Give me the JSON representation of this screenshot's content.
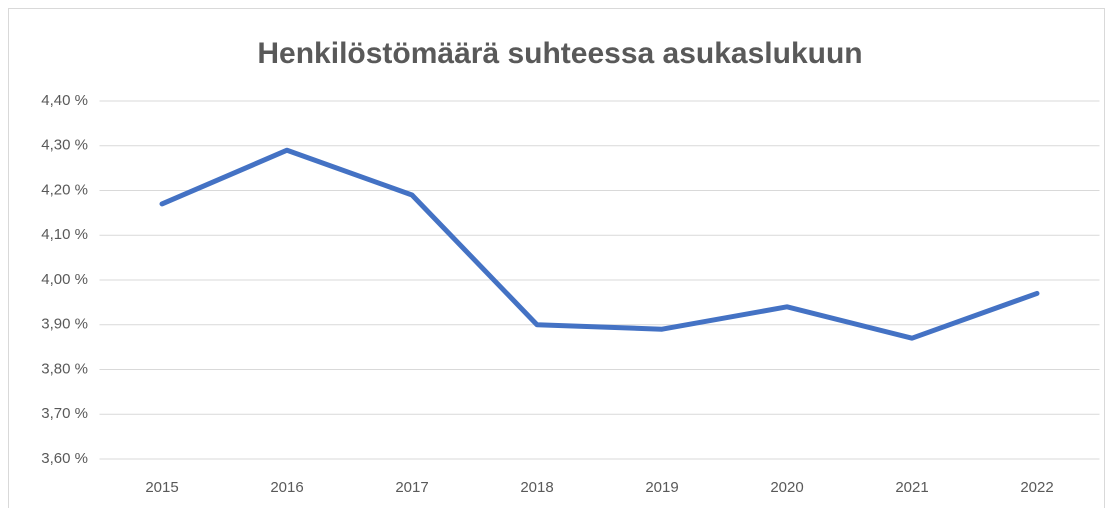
{
  "chart_data": {
    "type": "line",
    "title": "Henkilöstömäärä suhteessa asukaslukuun",
    "categories": [
      "2015",
      "2016",
      "2017",
      "2018",
      "2019",
      "2020",
      "2021",
      "2022"
    ],
    "series": [
      {
        "name": "Henkilöstömäärä suhteessa asukaslukuun",
        "color": "#4472c4",
        "values": [
          4.17,
          4.29,
          4.19,
          3.9,
          3.89,
          3.94,
          3.87,
          3.97
        ]
      }
    ],
    "ylim": [
      3.6,
      4.4
    ],
    "yticks": [
      {
        "value": 3.6,
        "label": "3,60 %"
      },
      {
        "value": 3.7,
        "label": "3,70 %"
      },
      {
        "value": 3.8,
        "label": "3,80 %"
      },
      {
        "value": 3.9,
        "label": "3,90 %"
      },
      {
        "value": 4.0,
        "label": "4,00 %"
      },
      {
        "value": 4.1,
        "label": "4,10 %"
      },
      {
        "value": 4.2,
        "label": "4,20 %"
      },
      {
        "value": 4.3,
        "label": "4,30 %"
      },
      {
        "value": 4.4,
        "label": "4,40 %"
      }
    ],
    "grid": true
  }
}
